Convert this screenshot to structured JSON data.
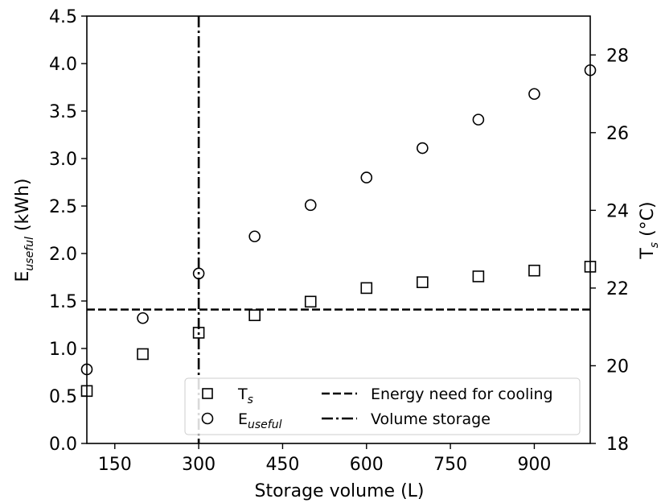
{
  "chart_data": {
    "type": "scatter",
    "xlabel": "Storage volume (L)",
    "ylabel": "E",
    "ylabel_sub": "useful",
    "ylabel_suffix": " (kWh)",
    "y2label": "T",
    "y2label_sub": "s",
    "y2label_suffix": " (°C)",
    "xlim": [
      100,
      1000
    ],
    "ylim": [
      0,
      4.5
    ],
    "y2lim": [
      18,
      29
    ],
    "xticks": [
      150,
      300,
      450,
      600,
      750,
      900
    ],
    "xtick_labels": [
      "150",
      "300",
      "450",
      "600",
      "750",
      "900"
    ],
    "yticks": [
      0,
      0.5,
      1.0,
      1.5,
      2.0,
      2.5,
      3.0,
      3.5,
      4.0,
      4.5
    ],
    "ytick_labels": [
      "0.0",
      "0.5",
      "1.0",
      "1.5",
      "2.0",
      "2.5",
      "3.0",
      "3.5",
      "4.0",
      "4.5"
    ],
    "y2ticks": [
      18,
      20,
      22,
      24,
      26,
      28
    ],
    "y2tick_labels": [
      "18",
      "20",
      "22",
      "24",
      "26",
      "28"
    ],
    "grid": false,
    "legend_position": "bottom-right",
    "series": [
      {
        "name": "T",
        "name_sub": "s",
        "marker": "square",
        "axis": "right",
        "x": [
          100,
          200,
          300,
          400,
          500,
          600,
          700,
          800,
          900,
          1000
        ],
        "y": [
          19.35,
          20.3,
          20.85,
          21.3,
          21.65,
          22.0,
          22.15,
          22.3,
          22.45,
          22.55
        ]
      },
      {
        "name": "E",
        "name_sub": "useful",
        "marker": "circle",
        "axis": "left",
        "x": [
          100,
          200,
          300,
          400,
          500,
          600,
          700,
          800,
          900,
          1000
        ],
        "y": [
          0.78,
          1.32,
          1.79,
          2.18,
          2.51,
          2.8,
          3.11,
          3.41,
          3.68,
          3.93
        ]
      }
    ],
    "reference_lines": [
      {
        "name": "Energy need for cooling",
        "orientation": "horizontal",
        "axis": "left",
        "value": 1.41,
        "style": "dashed"
      },
      {
        "name": "Volume storage",
        "orientation": "vertical",
        "value": 300,
        "style": "dashdot"
      }
    ]
  }
}
